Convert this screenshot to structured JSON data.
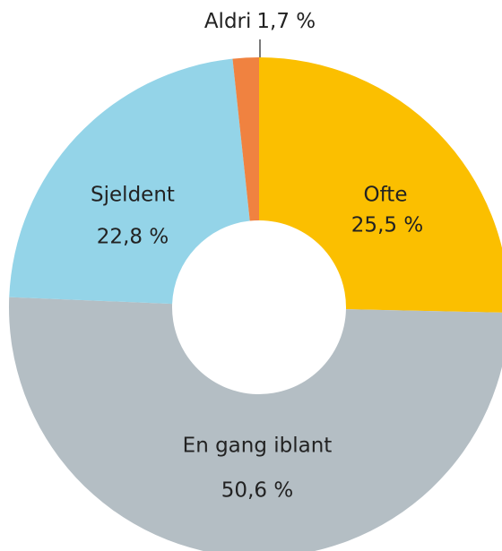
{
  "chart_data": {
    "type": "donut",
    "categories": [
      "Ofte",
      "En gang iblant",
      "Sjeldent",
      "Aldri"
    ],
    "values": [
      25.5,
      50.6,
      22.8,
      1.7
    ],
    "value_labels": [
      "25,5 %",
      "50,6 %",
      "22,8 %",
      "1,7 %"
    ],
    "colors": [
      "#fbbf00",
      "#b4bec4",
      "#94d4e8",
      "#f08240"
    ]
  }
}
